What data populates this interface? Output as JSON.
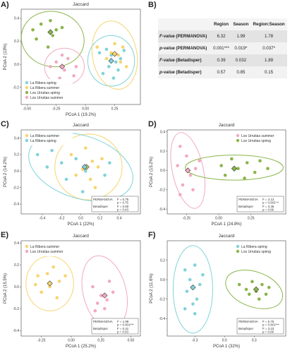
{
  "panel_labels": {
    "a": "A)",
    "b": "B)",
    "c": "C)",
    "d": "D)",
    "e": "E)",
    "f": "F)"
  },
  "colors": {
    "la_ribera_spring": "#7fd3d8",
    "la_ribera_summer": "#f6d46f",
    "los_urrutias_spring": "#8ab54a",
    "los_urrutias_summer": "#f2a9c2"
  },
  "table": {
    "headers": [
      "",
      "Region",
      "Season",
      "Region:Season"
    ],
    "rows": [
      {
        "label_italic": "F-value",
        "label_rest": "(PERMANOVA)",
        "values": [
          "6.32",
          "1.99",
          "1.78"
        ]
      },
      {
        "label_italic": "p-value",
        "label_rest": "(PERMANOVA)",
        "values": [
          "0.001***",
          "0.019*",
          "0.037*"
        ]
      },
      {
        "label_italic": "F-value",
        "label_rest": "(Betadisper)",
        "values": [
          "0.39",
          "0.032",
          "1.89"
        ]
      },
      {
        "label_italic": "p-value",
        "label_rest": "(Betadisper)",
        "values": [
          "0.57",
          "0.85",
          "0.15"
        ]
      }
    ]
  },
  "chart_data": [
    {
      "id": "A",
      "type": "scatter",
      "title": "Jaccard",
      "xlabel": "PCoA 1  (19.2%)",
      "ylabel": "PCoA 2  (13%)",
      "xlim": [
        -0.55,
        0.47
      ],
      "ylim": [
        -0.35,
        0.48
      ],
      "xticks": [
        "-0.50",
        "-0.25",
        "0.00",
        "0.25"
      ],
      "xtick_vals": [
        -0.5,
        -0.25,
        0,
        0.25
      ],
      "yticks": [
        "-0.2",
        "0.0",
        "0.2",
        "0.4"
      ],
      "ytick_vals": [
        -0.2,
        0,
        0.2,
        0.4
      ],
      "legend_position": "bottom-left",
      "legend": [
        {
          "name": "La Ribera spring",
          "color": "#7fd3d8"
        },
        {
          "name": "La Ribera summer",
          "color": "#f6d46f"
        },
        {
          "name": "Los Urrutias spring",
          "color": "#8ab54a"
        },
        {
          "name": "Los Urrutias summer",
          "color": "#f2a9c2"
        }
      ],
      "series": [
        {
          "color": "#7fd3d8",
          "points": [
            [
              0.12,
              0.1
            ],
            [
              0.18,
              0.13
            ],
            [
              0.22,
              0.08
            ],
            [
              0.26,
              0.02
            ],
            [
              0.2,
              -0.02
            ],
            [
              0.3,
              0.05
            ],
            [
              0.15,
              -0.08
            ],
            [
              0.24,
              -0.12
            ],
            [
              0.33,
              0.12
            ],
            [
              0.28,
              -0.05
            ]
          ],
          "centroid": [
            0.22,
            0.03
          ],
          "ellipse": {
            "cx": 0.22,
            "cy": 0.03,
            "rx": 0.2,
            "ry": 0.22,
            "rot": 0
          }
        },
        {
          "color": "#f6d46f",
          "points": [
            [
              0.1,
              0.15
            ],
            [
              0.25,
              0.18
            ],
            [
              0.32,
              0.15
            ],
            [
              0.3,
              0.02
            ],
            [
              0.18,
              0.05
            ],
            [
              0.35,
              -0.02
            ],
            [
              0.22,
              0.1
            ],
            [
              0.28,
              0.08
            ]
          ],
          "centroid": [
            0.25,
            0.09
          ],
          "ellipse": {
            "cx": 0.25,
            "cy": 0.08,
            "rx": 0.19,
            "ry": 0.3,
            "rot": 10
          }
        },
        {
          "color": "#8ab54a",
          "points": [
            [
              -0.38,
              0.35
            ],
            [
              -0.3,
              0.38
            ],
            [
              -0.25,
              0.3
            ],
            [
              -0.42,
              0.22
            ],
            [
              -0.32,
              0.15
            ],
            [
              -0.2,
              0.32
            ],
            [
              -0.45,
              0.3
            ],
            [
              -0.28,
              0.25
            ]
          ],
          "centroid": [
            -0.3,
            0.28
          ],
          "ellipse": {
            "cx": -0.28,
            "cy": 0.22,
            "rx": 0.27,
            "ry": 0.24,
            "rot": -12
          }
        },
        {
          "color": "#f2a9c2",
          "points": [
            [
              -0.25,
              0.02
            ],
            [
              -0.18,
              -0.05
            ],
            [
              -0.1,
              -0.1
            ],
            [
              -0.3,
              -0.02
            ],
            [
              -0.22,
              -0.12
            ],
            [
              -0.15,
              0.05
            ],
            [
              -0.08,
              -0.02
            ],
            [
              -0.2,
              0.08
            ]
          ],
          "centroid": [
            -0.2,
            -0.02
          ],
          "ellipse": {
            "cx": -0.18,
            "cy": -0.02,
            "rx": 0.17,
            "ry": 0.16,
            "rot": 0
          }
        }
      ]
    },
    {
      "id": "C",
      "type": "scatter",
      "title": "Jaccard",
      "xlabel": "PCoA 1 (22%)",
      "ylabel": "PCoA 2 (14.2%)",
      "xlim": [
        -0.62,
        0.62
      ],
      "ylim": [
        -0.52,
        0.5
      ],
      "xticks": [
        "-0.4",
        "-0.2",
        "0.0",
        "0.2",
        "0.4"
      ],
      "xtick_vals": [
        -0.4,
        -0.2,
        0,
        0.2,
        0.4
      ],
      "yticks": [
        "-0.4",
        "-0.2",
        "0.0",
        "0.2",
        "0.4"
      ],
      "ytick_vals": [
        -0.4,
        -0.2,
        0,
        0.2,
        0.4
      ],
      "legend_position": "top-left",
      "legend": [
        {
          "name": "La Ribera summer",
          "color": "#f6d46f"
        },
        {
          "name": "La Ribera spring",
          "color": "#7fd3d8"
        }
      ],
      "stats": [
        {
          "label": "PERMANOVA",
          "f": "F = 0.75",
          "p": "p = 0.75"
        },
        {
          "label": "Betadisper",
          "f": "F = 0.60",
          "p": "p = 0.43"
        }
      ],
      "series": [
        {
          "color": "#f6d46f",
          "points": [
            [
              -0.1,
              0.2
            ],
            [
              0.05,
              0.28
            ],
            [
              0.12,
              0.12
            ],
            [
              0.18,
              0.05
            ],
            [
              -0.05,
              -0.05
            ],
            [
              0.1,
              -0.1
            ],
            [
              0.22,
              0.15
            ],
            [
              0.02,
              0.02
            ],
            [
              0.15,
              -0.2
            ]
          ],
          "centroid": [
            0.06,
            0.05
          ],
          "ellipse": {
            "cx": 0.08,
            "cy": 0.05,
            "rx": 0.35,
            "ry": 0.4,
            "rot": 0
          }
        },
        {
          "color": "#7fd3d8",
          "points": [
            [
              -0.45,
              0.2
            ],
            [
              -0.3,
              0.25
            ],
            [
              -0.2,
              0.1
            ],
            [
              -0.05,
              0.15
            ],
            [
              0.05,
              0.0
            ],
            [
              -0.15,
              -0.1
            ],
            [
              0.3,
              0.1
            ],
            [
              0.02,
              -0.25
            ],
            [
              -0.35,
              0.05
            ],
            [
              0.25,
              -0.05
            ]
          ],
          "centroid": [
            0.04,
            0.05
          ],
          "ellipse": {
            "cx": 0.0,
            "cy": 0.05,
            "rx": 0.56,
            "ry": 0.38,
            "rot": -18
          }
        }
      ]
    },
    {
      "id": "D",
      "type": "scatter",
      "title": "Jaccard",
      "xlabel": "PCoA 1  (24.8%)",
      "ylabel": "PCoA 2 (15.2%)",
      "xlim": [
        -0.4,
        0.52
      ],
      "ylim": [
        -0.45,
        0.42
      ],
      "xticks": [
        "-0.25",
        "0.00",
        "0.25"
      ],
      "xtick_vals": [
        -0.25,
        0,
        0.25
      ],
      "yticks": [
        "-0.4",
        "-0.2",
        "0.0",
        "0.2",
        "0.4"
      ],
      "ytick_vals": [
        -0.4,
        -0.2,
        0,
        0.2,
        0.4
      ],
      "legend_position": "top-right",
      "legend": [
        {
          "name": "Los Urrutias summer",
          "color": "#f2a9c2"
        },
        {
          "name": "Los Urrutias spring",
          "color": "#8ab54a"
        }
      ],
      "stats": [
        {
          "label": "PERMANOVA",
          "f": "F = 3.13",
          "p": "p = 0.003 **"
        },
        {
          "label": "Betadisper",
          "f": "F = 3.36",
          "p": "p = 0.06"
        }
      ],
      "series": [
        {
          "color": "#f2a9c2",
          "points": [
            [
              -0.3,
              0.25
            ],
            [
              -0.25,
              0.15
            ],
            [
              -0.32,
              0.05
            ],
            [
              -0.22,
              -0.05
            ],
            [
              -0.28,
              -0.15
            ],
            [
              -0.2,
              -0.2
            ],
            [
              -0.3,
              -0.25
            ],
            [
              -0.18,
              0.02
            ],
            [
              -0.15,
              0.1
            ]
          ],
          "centroid": [
            -0.24,
            0.0
          ],
          "ellipse": {
            "cx": -0.24,
            "cy": 0.0,
            "rx": 0.12,
            "ry": 0.4,
            "rot": 12
          }
        },
        {
          "color": "#8ab54a",
          "points": [
            [
              0.02,
              0.05
            ],
            [
              0.1,
              0.12
            ],
            [
              0.15,
              0.02
            ],
            [
              0.22,
              0.08
            ],
            [
              0.28,
              -0.02
            ],
            [
              0.32,
              0.1
            ],
            [
              0.38,
              0.02
            ],
            [
              0.05,
              -0.05
            ],
            [
              0.2,
              -0.08
            ]
          ],
          "centroid": [
            0.12,
            0.02
          ],
          "ellipse": {
            "cx": 0.12,
            "cy": 0.03,
            "rx": 0.38,
            "ry": 0.13,
            "rot": 0
          }
        }
      ]
    },
    {
      "id": "E",
      "type": "scatter",
      "title": "Jaccard",
      "xlabel": "PCoA 1 (25.2%)",
      "ylabel": "PCoA 2 (15.5%)",
      "xlim": [
        -0.42,
        0.58
      ],
      "ylim": [
        -0.45,
        0.42
      ],
      "xticks": [
        "-0.25",
        "0.00",
        "0.25",
        "0.50"
      ],
      "xtick_vals": [
        -0.25,
        0,
        0.25,
        0.5
      ],
      "yticks": [
        "-0.4",
        "-0.2",
        "0.0",
        "0.2",
        "0.4"
      ],
      "ytick_vals": [
        -0.4,
        -0.2,
        0,
        0.2,
        0.4
      ],
      "legend_position": "top-left",
      "legend": [
        {
          "name": "La Ribera summer",
          "color": "#f6d46f"
        },
        {
          "name": "Los Urrutias summer",
          "color": "#f2a9c2"
        }
      ],
      "stats": [
        {
          "label": "PERMANOVA",
          "f": "F = 1.99",
          "p": "p = 0.001***"
        },
        {
          "label": "Betadisper",
          "f": "F = 0.41",
          "p": "p = 0.53"
        }
      ],
      "series": [
        {
          "color": "#f6d46f",
          "points": [
            [
              -0.3,
              0.02
            ],
            [
              -0.25,
              -0.05
            ],
            [
              -0.18,
              0.0
            ],
            [
              -0.12,
              -0.1
            ],
            [
              -0.2,
              0.12
            ],
            [
              -0.1,
              0.05
            ],
            [
              -0.05,
              0.1
            ],
            [
              -0.28,
              0.1
            ],
            [
              -0.15,
              0.18
            ]
          ],
          "centroid": [
            -0.18,
            0.03
          ],
          "ellipse": {
            "cx": -0.18,
            "cy": 0.03,
            "rx": 0.2,
            "ry": 0.25,
            "rot": 0
          }
        },
        {
          "color": "#f2a9c2",
          "points": [
            [
              0.18,
              0.0
            ],
            [
              0.25,
              -0.08
            ],
            [
              0.3,
              -0.12
            ],
            [
              0.22,
              -0.15
            ],
            [
              0.35,
              -0.05
            ],
            [
              0.32,
              0.05
            ],
            [
              0.28,
              -0.2
            ],
            [
              0.2,
              -0.22
            ]
          ],
          "centroid": [
            0.28,
            -0.08
          ],
          "ellipse": {
            "cx": 0.28,
            "cy": -0.05,
            "rx": 0.18,
            "ry": 0.34,
            "rot": 14
          }
        }
      ]
    },
    {
      "id": "F",
      "type": "scatter",
      "title": "Jaccard",
      "xlabel": "PCoA 1 (32%)",
      "ylabel": "PCoA 2 (11.6%)",
      "xlim": [
        -0.58,
        0.62
      ],
      "ylim": [
        -0.58,
        0.4
      ],
      "xticks": [
        "-0.3",
        "0.0",
        "0.3"
      ],
      "xtick_vals": [
        -0.3,
        0,
        0.3
      ],
      "yticks": [
        "-0.4",
        "-0.2",
        "0.0",
        "0.2"
      ],
      "ytick_vals": [
        -0.4,
        -0.2,
        0,
        0.2
      ],
      "legend_position": "top-right",
      "legend": [
        {
          "name": "La Ribera spring",
          "color": "#7fd3d8"
        },
        {
          "name": "Los Urrutias spring",
          "color": "#8ab54a"
        }
      ],
      "stats": [
        {
          "label": "PERMANOVA",
          "f": "F = 5.75",
          "p": "p = 0.001***"
        },
        {
          "label": "Betadisper",
          "f": "F = 3.23",
          "p": "p = 0.06"
        }
      ],
      "series": [
        {
          "color": "#7fd3d8",
          "points": [
            [
              -0.4,
              0.1
            ],
            [
              -0.3,
              0.15
            ],
            [
              -0.35,
              0.0
            ],
            [
              -0.25,
              -0.05
            ],
            [
              -0.38,
              -0.12
            ],
            [
              -0.28,
              -0.2
            ],
            [
              -0.32,
              -0.25
            ],
            [
              -0.4,
              -0.3
            ],
            [
              -0.22,
              0.05
            ],
            [
              -0.3,
              -0.35
            ]
          ],
          "centroid": [
            -0.32,
            -0.08
          ],
          "ellipse": {
            "cx": -0.32,
            "cy": -0.1,
            "rx": 0.2,
            "ry": 0.45,
            "rot": 0
          }
        },
        {
          "color": "#8ab54a",
          "points": [
            [
              0.15,
              -0.05
            ],
            [
              0.22,
              -0.1
            ],
            [
              0.28,
              -0.02
            ],
            [
              0.32,
              -0.12
            ],
            [
              0.38,
              -0.05
            ],
            [
              0.42,
              -0.15
            ],
            [
              0.35,
              -0.2
            ],
            [
              0.25,
              -0.15
            ],
            [
              0.45,
              -0.08
            ]
          ],
          "centroid": [
            0.32,
            -0.1
          ],
          "ellipse": {
            "cx": 0.3,
            "cy": -0.1,
            "rx": 0.3,
            "ry": 0.18,
            "rot": -20
          }
        }
      ]
    }
  ]
}
